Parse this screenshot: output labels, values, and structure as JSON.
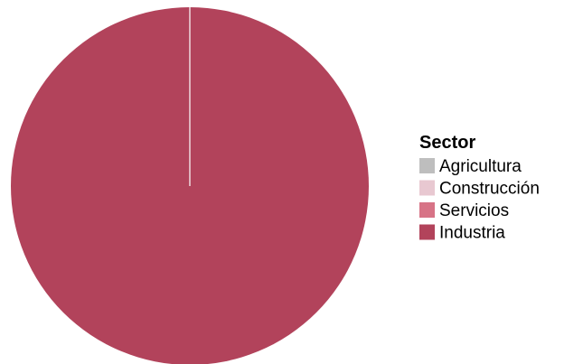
{
  "chart_data": {
    "type": "pie",
    "legend_title": "Sector",
    "legend_position": "right",
    "categories": [
      "Agricultura",
      "Construcción",
      "Servicios",
      "Industria"
    ],
    "values": [
      0,
      0,
      0,
      100
    ],
    "colors": [
      "#bebebe",
      "#e8c8d1",
      "#d77386",
      "#b2435b"
    ]
  }
}
